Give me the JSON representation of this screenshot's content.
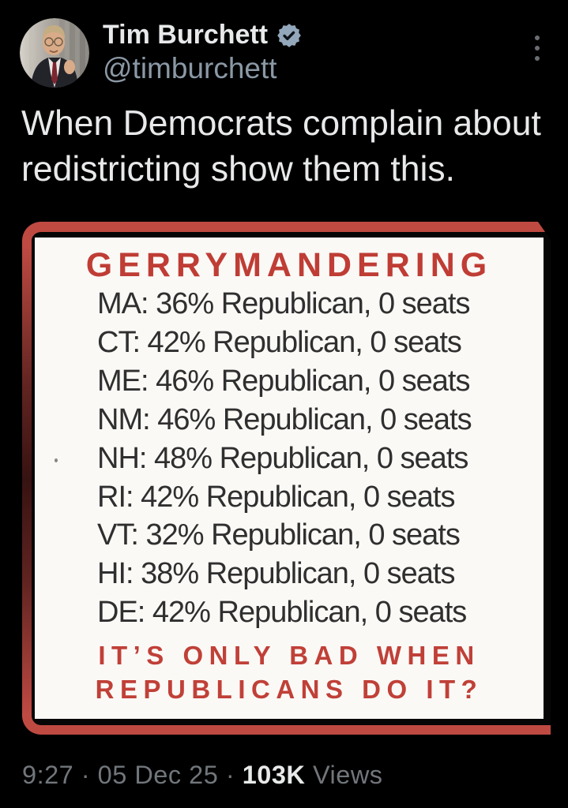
{
  "tweet": {
    "author": {
      "name": "Tim Burchett",
      "handle": "@timburchett",
      "verified_badge_color": "#93a7bb"
    },
    "body": "When Democrats complain about redistricting show them this."
  },
  "meme": {
    "title": "GERRYMANDERING",
    "stat_lines": [
      "MA: 36% Republican, 0 seats",
      "CT: 42% Republican, 0 seats",
      "ME: 46% Republican, 0 seats",
      "NM: 46% Republican, 0 seats",
      "NH: 48% Republican, 0 seats",
      "RI: 42% Republican, 0 seats",
      "VT: 32% Republican, 0 seats",
      "HI: 38% Republican, 0 seats",
      "DE: 42% Republican, 0 seats"
    ],
    "bottom_line1": "IT’S ONLY BAD WHEN",
    "bottom_line2": "REPUBLICANS DO IT?",
    "frame_color": "#bf4a42",
    "title_color": "#bf3d35",
    "text_color": "#2f2f2f",
    "background_color": "#fbf9f6"
  },
  "meta": {
    "time": "9:27",
    "date": "05 Dec 25",
    "views_count": "103K",
    "views_label": "Views",
    "separator": "·"
  }
}
